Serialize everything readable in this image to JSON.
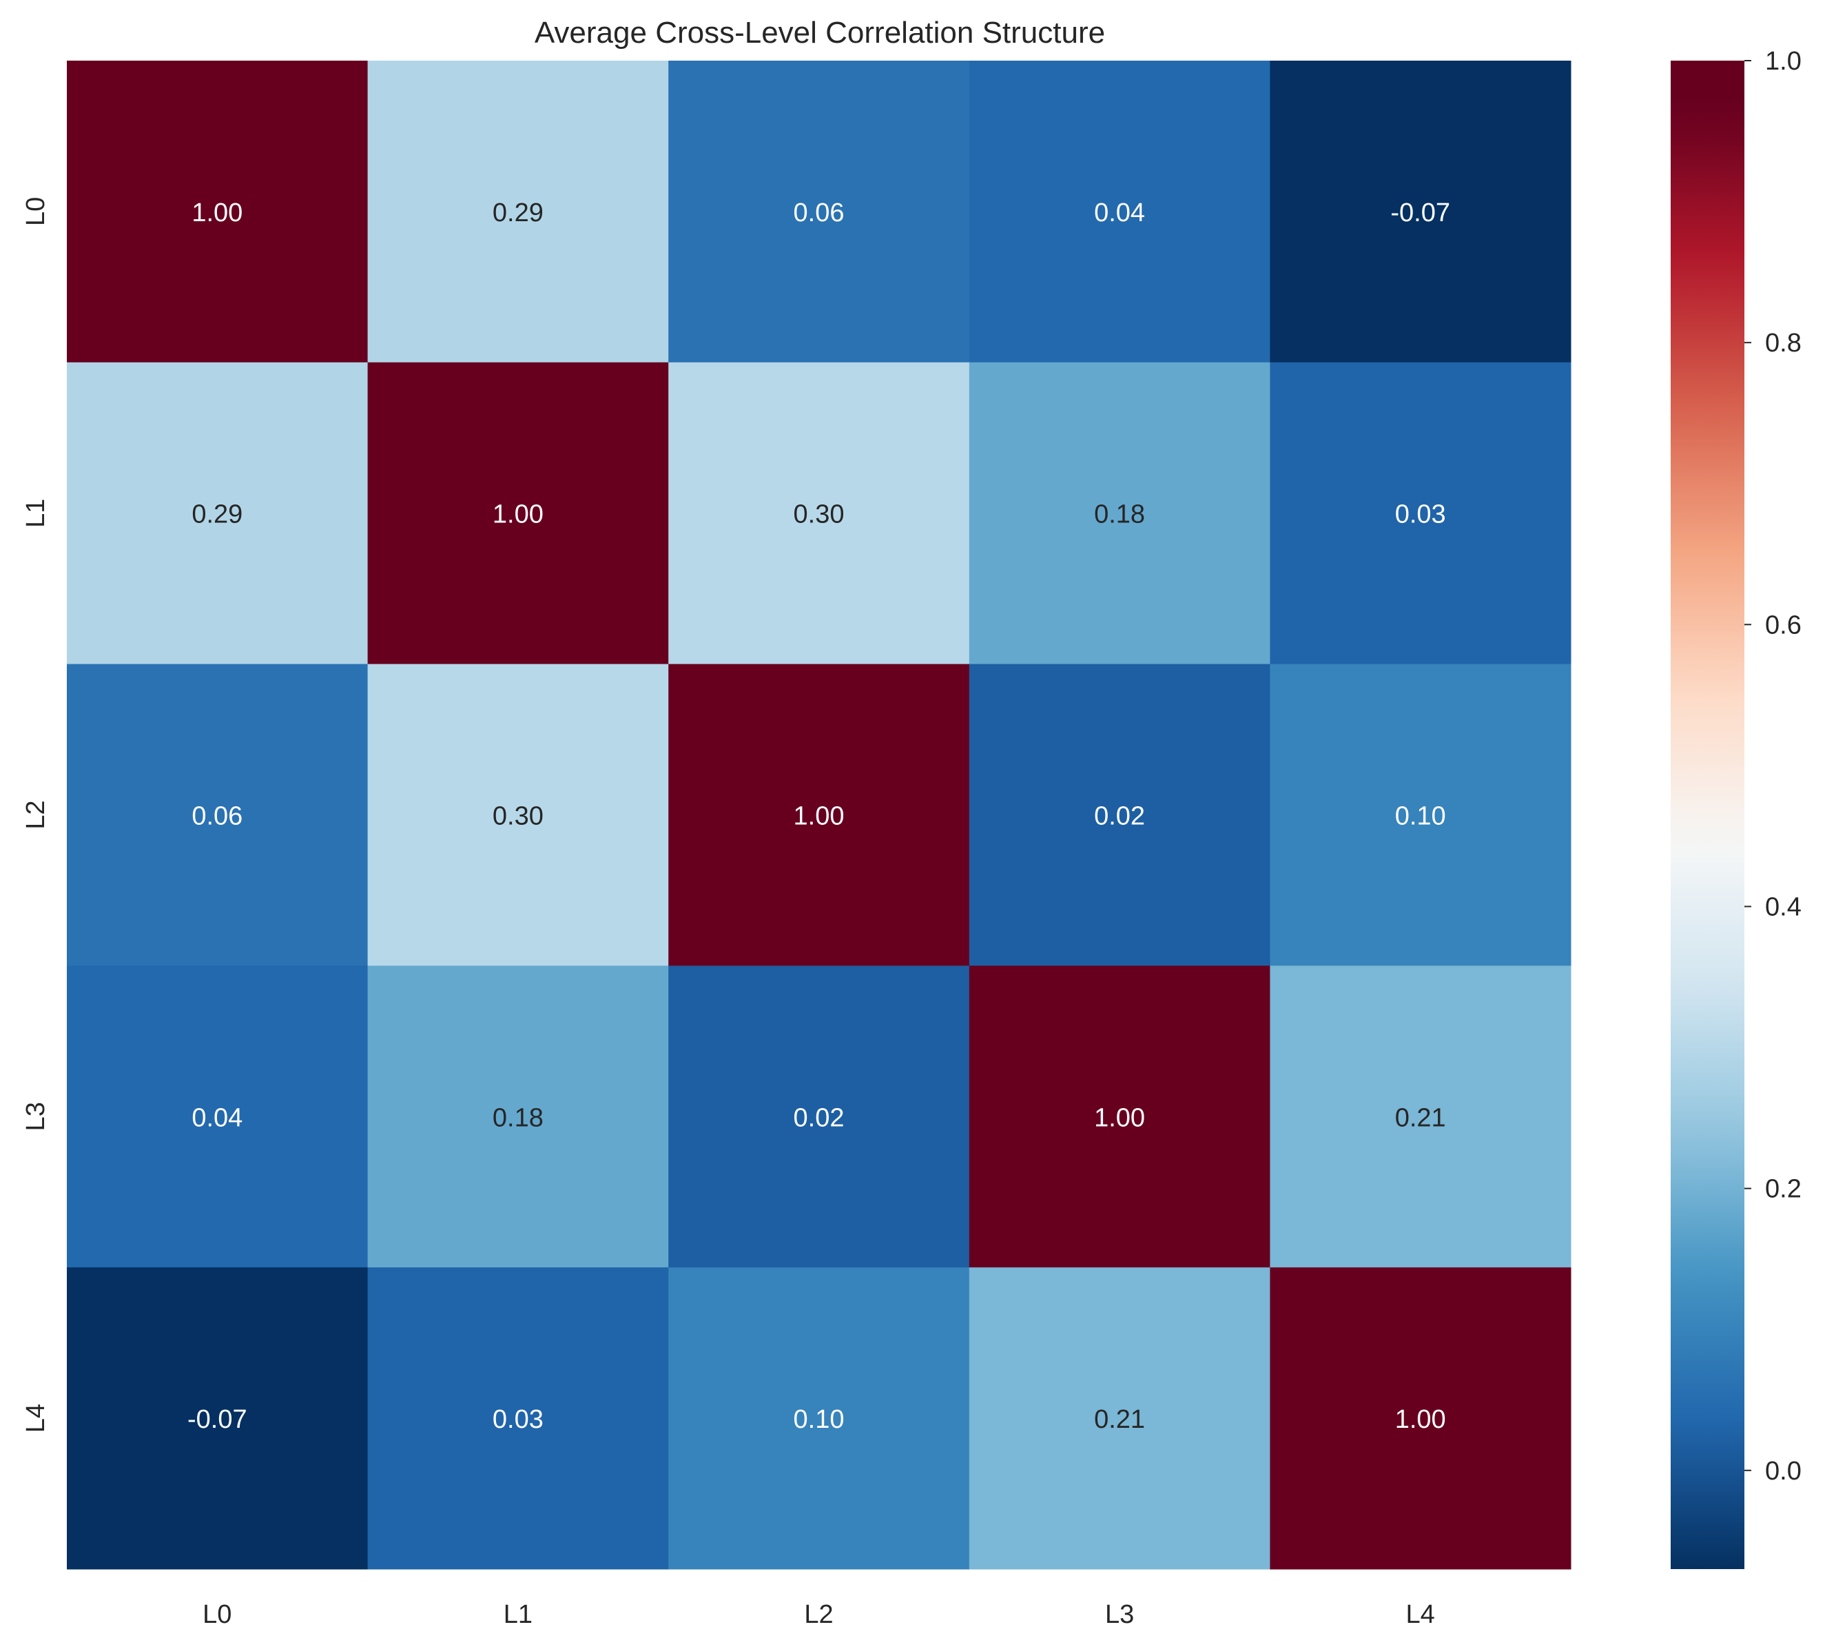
{
  "chart_data": {
    "type": "heatmap",
    "title": "Average Cross-Level Correlation Structure",
    "xlabel": "",
    "ylabel": "",
    "x_categories": [
      "L0",
      "L1",
      "L2",
      "L3",
      "L4"
    ],
    "y_categories": [
      "L0",
      "L1",
      "L2",
      "L3",
      "L4"
    ],
    "values": [
      [
        1.0,
        0.29,
        0.06,
        0.04,
        -0.07
      ],
      [
        0.29,
        1.0,
        0.3,
        0.18,
        0.03
      ],
      [
        0.06,
        0.3,
        1.0,
        0.02,
        0.1
      ],
      [
        0.04,
        0.18,
        0.02,
        1.0,
        0.21
      ],
      [
        -0.07,
        0.03,
        0.1,
        0.21,
        1.0
      ]
    ],
    "value_labels": [
      [
        "1.00",
        "0.29",
        "0.06",
        "0.04",
        "-0.07"
      ],
      [
        "0.29",
        "1.00",
        "0.30",
        "0.18",
        "0.03"
      ],
      [
        "0.06",
        "0.30",
        "1.00",
        "0.02",
        "0.10"
      ],
      [
        "0.04",
        "0.18",
        "0.02",
        "1.00",
        "0.21"
      ],
      [
        "-0.07",
        "0.03",
        "0.10",
        "0.21",
        "1.00"
      ]
    ],
    "colorbar": {
      "range": [
        -0.07,
        1.0
      ],
      "ticks": [
        0.0,
        0.2,
        0.4,
        0.6,
        0.8,
        1.0
      ],
      "tick_labels": [
        "0.0",
        "0.2",
        "0.4",
        "0.6",
        "0.8",
        "1.0"
      ],
      "colormap": "RdBu_r",
      "colormap_stops": [
        "#053061",
        "#2166ac",
        "#4393c3",
        "#92c5de",
        "#d1e5f0",
        "#f7f7f7",
        "#fddbc7",
        "#f4a582",
        "#d6604d",
        "#b2182b",
        "#67001f"
      ],
      "colormap_center": 0.465
    },
    "grid": false,
    "legend": "colorbar-right"
  }
}
